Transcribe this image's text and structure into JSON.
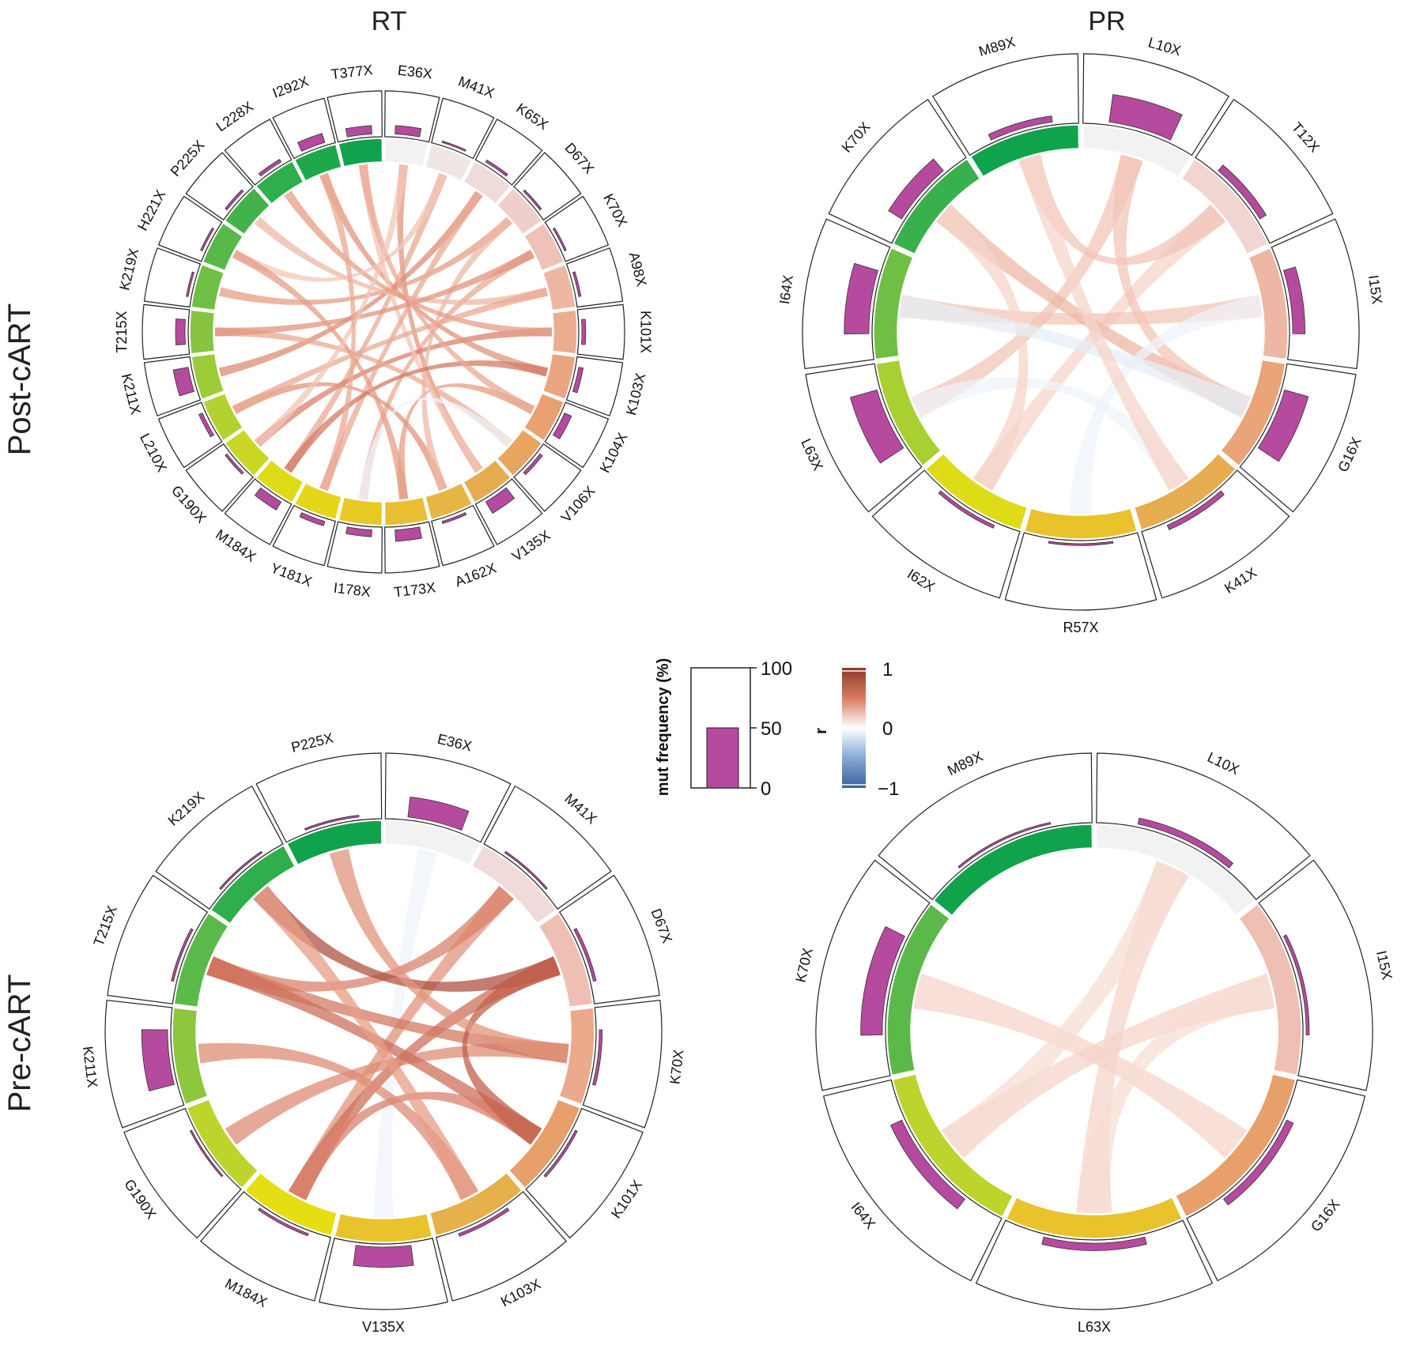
{
  "figure": {
    "columns": [
      "RT",
      "PR"
    ],
    "rows": [
      "Post-cART",
      "Pre-cART"
    ]
  },
  "legend": {
    "bar": {
      "title": "mut frequency (%)",
      "ticks": [
        "100",
        "50",
        "0"
      ],
      "example_value": 50,
      "color": "#b64a9e"
    },
    "corr": {
      "title": "r",
      "ticks": [
        "1",
        "0",
        "−1"
      ],
      "colors": [
        "#3b5f9e",
        "#ffffff",
        "#8c3a2c"
      ]
    }
  },
  "chart_data": [
    {
      "type": "chord",
      "title": "RT Post-cART",
      "segments": [
        "E36X",
        "M41X",
        "K65X",
        "D67X",
        "K70X",
        "A98X",
        "K101X",
        "K103X",
        "K104X",
        "V106X",
        "V135X",
        "A162X",
        "T173X",
        "I178X",
        "Y181X",
        "M184X",
        "G190X",
        "L210X",
        "K211X",
        "T215X",
        "K219X",
        "H221X",
        "P225X",
        "L228X",
        "I292X",
        "T377X"
      ],
      "mut_frequency": [
        22,
        4,
        6,
        5,
        5,
        6,
        10,
        12,
        20,
        8,
        35,
        6,
        30,
        18,
        12,
        25,
        6,
        10,
        40,
        25,
        5,
        5,
        6,
        8,
        25,
        22
      ],
      "links": [
        [
          0,
          10,
          0.4
        ],
        [
          1,
          15,
          0.3
        ],
        [
          2,
          18,
          0.45
        ],
        [
          3,
          20,
          0.35
        ],
        [
          4,
          13,
          0.3
        ],
        [
          5,
          22,
          0.25
        ],
        [
          6,
          16,
          0.5
        ],
        [
          7,
          24,
          0.4
        ],
        [
          8,
          12,
          0.35
        ],
        [
          9,
          19,
          0.3
        ],
        [
          10,
          25,
          0.2
        ],
        [
          11,
          17,
          0.4
        ],
        [
          2,
          14,
          0.3
        ],
        [
          3,
          11,
          0.25
        ],
        [
          6,
          23,
          0.35
        ],
        [
          1,
          21,
          0.2
        ],
        [
          7,
          15,
          0.55
        ],
        [
          4,
          19,
          0.4
        ],
        [
          8,
          25,
          0.3
        ],
        [
          9,
          13,
          -0.1
        ],
        [
          12,
          21,
          0.35
        ],
        [
          5,
          17,
          0.3
        ],
        [
          0,
          16,
          0.2
        ],
        [
          14,
          24,
          0.3
        ]
      ]
    },
    {
      "type": "chord",
      "title": "PR Post-cART",
      "segments": [
        "L10X",
        "T12X",
        "I15X",
        "G16X",
        "K41X",
        "R57X",
        "I62X",
        "L63X",
        "I64X",
        "K70X",
        "M89X"
      ],
      "mut_frequency": [
        45,
        12,
        20,
        40,
        8,
        3,
        5,
        45,
        40,
        25,
        10
      ],
      "links": [
        [
          0,
          7,
          0.2
        ],
        [
          1,
          6,
          0.15
        ],
        [
          2,
          8,
          0.2
        ],
        [
          3,
          9,
          0.25
        ],
        [
          4,
          7,
          -0.1
        ],
        [
          0,
          3,
          0.2
        ],
        [
          2,
          5,
          -0.1
        ],
        [
          6,
          9,
          0.15
        ],
        [
          1,
          10,
          0.2
        ],
        [
          3,
          8,
          -0.15
        ],
        [
          4,
          10,
          0.15
        ]
      ]
    },
    {
      "type": "chord",
      "title": "RT Pre-cART",
      "segments": [
        "E36X",
        "M41X",
        "D67X",
        "K70X",
        "K101X",
        "K103X",
        "V135X",
        "M184X",
        "G190X",
        "K211X",
        "T215X",
        "K219X",
        "P225X"
      ],
      "mut_frequency": [
        35,
        3,
        5,
        5,
        4,
        5,
        35,
        4,
        3,
        45,
        4,
        3,
        3
      ],
      "links": [
        [
          0,
          6,
          -0.1
        ],
        [
          1,
          7,
          0.4
        ],
        [
          1,
          10,
          0.5
        ],
        [
          2,
          7,
          0.6
        ],
        [
          2,
          11,
          0.8
        ],
        [
          3,
          8,
          0.45
        ],
        [
          3,
          10,
          0.55
        ],
        [
          4,
          10,
          0.6
        ],
        [
          4,
          7,
          0.5
        ],
        [
          5,
          9,
          0.45
        ],
        [
          5,
          11,
          0.35
        ],
        [
          2,
          4,
          0.7
        ],
        [
          3,
          12,
          0.4
        ]
      ]
    },
    {
      "type": "chord",
      "title": "PR Pre-cART",
      "segments": [
        "L10X",
        "I15X",
        "G16X",
        "L63X",
        "I64X",
        "K70X",
        "M89X"
      ],
      "mut_frequency": [
        10,
        5,
        12,
        12,
        20,
        35,
        3
      ],
      "links": [
        [
          0,
          3,
          0.15
        ],
        [
          1,
          4,
          0.15
        ],
        [
          2,
          5,
          0.15
        ],
        [
          0,
          4,
          0.12
        ],
        [
          1,
          3,
          0.12
        ]
      ]
    }
  ]
}
